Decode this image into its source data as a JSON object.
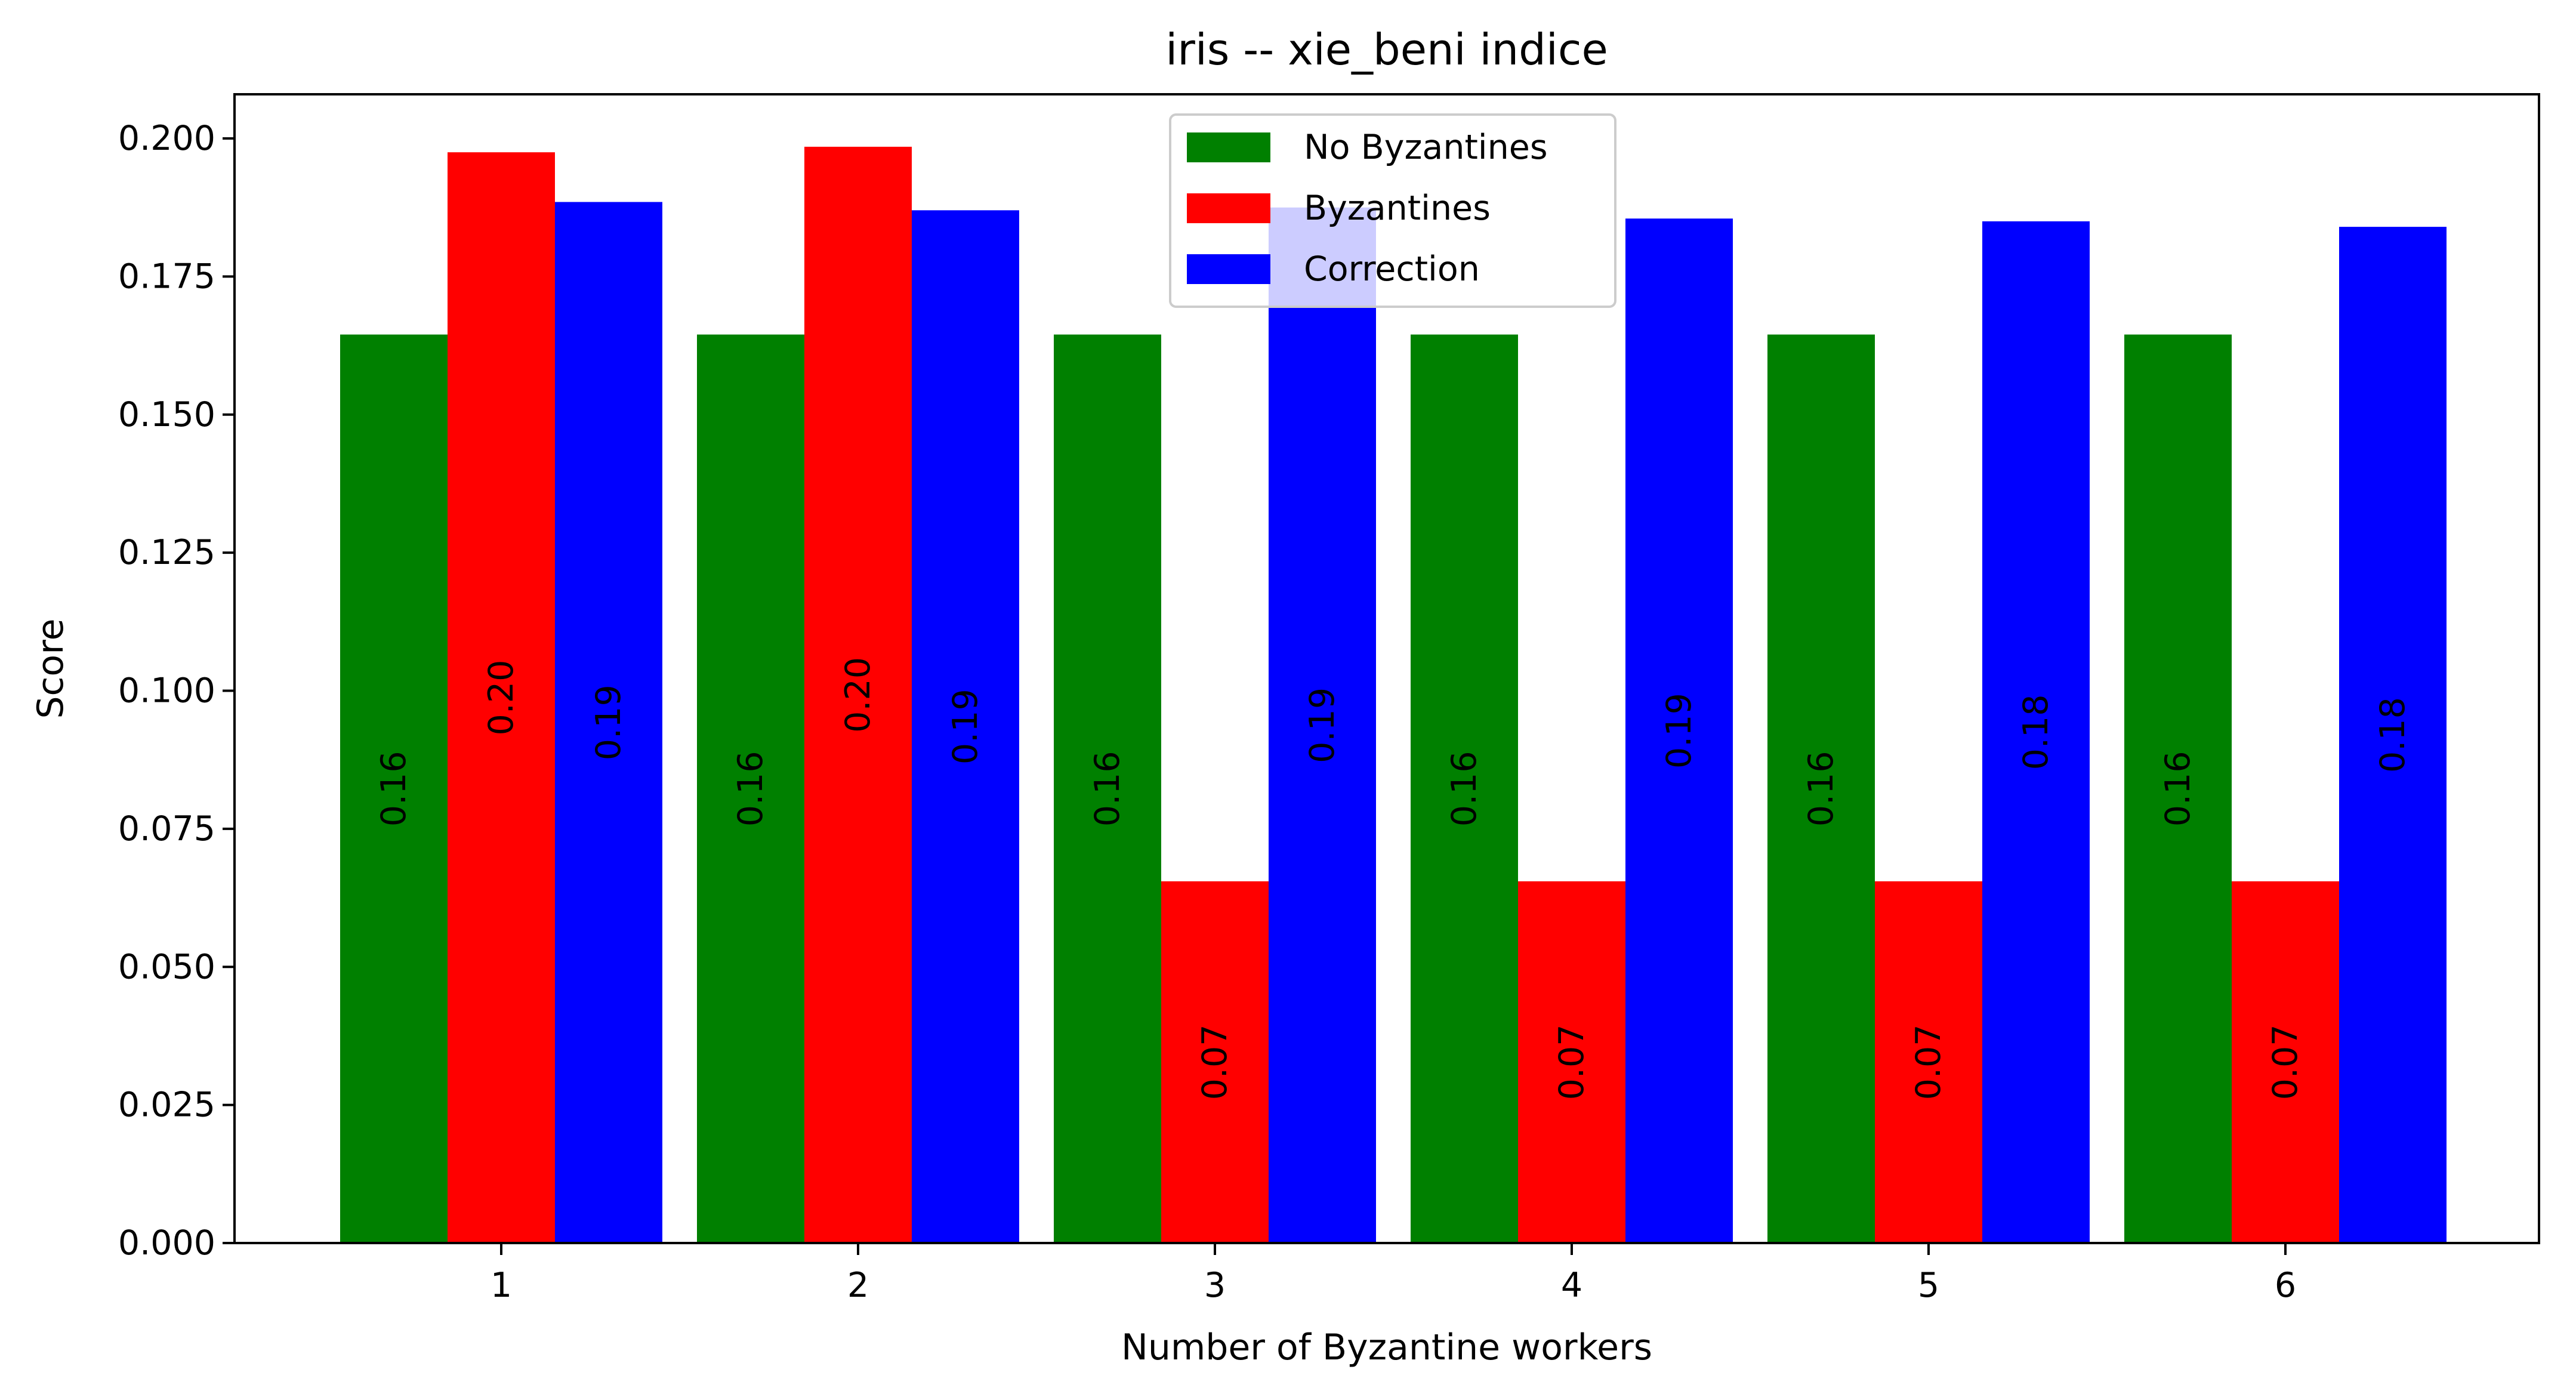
{
  "chart_data": {
    "type": "bar",
    "title": "iris -- xie_beni indice",
    "xlabel": "Number of Byzantine workers",
    "ylabel": "Score",
    "categories": [
      "1",
      "2",
      "3",
      "4",
      "5",
      "6"
    ],
    "ylim": [
      0,
      0.208
    ],
    "yticks": [
      "0.000",
      "0.025",
      "0.050",
      "0.075",
      "0.100",
      "0.125",
      "0.150",
      "0.175",
      "0.200"
    ],
    "legend_position": "top-center",
    "grid": false,
    "series": [
      {
        "name": "No Byzantines",
        "color": "#008000",
        "values": [
          0.1645,
          0.1645,
          0.1645,
          0.1645,
          0.1645,
          0.1645
        ],
        "labels": [
          "0.16",
          "0.16",
          "0.16",
          "0.16",
          "0.16",
          "0.16"
        ]
      },
      {
        "name": "Byzantines",
        "color": "#ff0000",
        "values": [
          0.1975,
          0.1985,
          0.0655,
          0.0655,
          0.0655,
          0.0655
        ],
        "labels": [
          "0.20",
          "0.20",
          "0.07",
          "0.07",
          "0.07",
          "0.07"
        ]
      },
      {
        "name": "Correction",
        "color": "#0000ff",
        "values": [
          0.1885,
          0.187,
          0.1875,
          0.1855,
          0.185,
          0.184
        ],
        "labels": [
          "0.19",
          "0.19",
          "0.19",
          "0.19",
          "0.18",
          "0.18"
        ]
      }
    ]
  }
}
